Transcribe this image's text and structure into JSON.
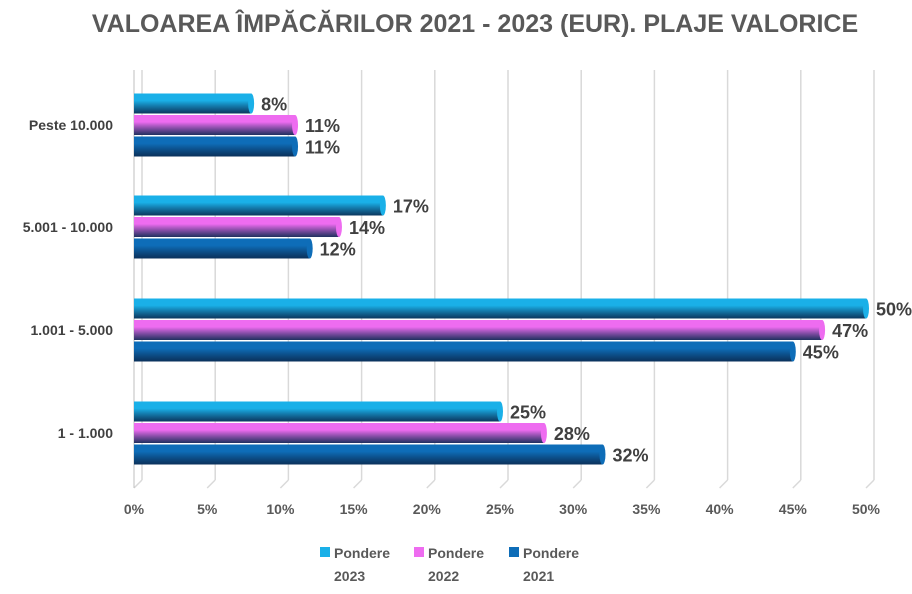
{
  "chart_data": {
    "type": "bar",
    "orientation": "horizontal",
    "title": "VALOAREA ÎMPĂCĂRILOR 2021 - 2023 (EUR). PLAJE VALORICE",
    "categories": [
      "Peste 10.000",
      "5.001 - 10.000",
      "1.001 - 5.000",
      "1 - 1.000"
    ],
    "series": [
      {
        "name": "Pondere 2023",
        "legend_lines": [
          "Pondere",
          "2023"
        ],
        "color": "#1ab0e8",
        "values": [
          8,
          17,
          50,
          25
        ],
        "labels": [
          "8%",
          "17%",
          "50%",
          "25%"
        ]
      },
      {
        "name": "Pondere 2022",
        "legend_lines": [
          "Pondere",
          "2022"
        ],
        "color": "#ee6cf0",
        "values": [
          11,
          14,
          47,
          28
        ],
        "labels": [
          "11%",
          "14%",
          "47%",
          "28%"
        ]
      },
      {
        "name": "Pondere 2021",
        "legend_lines": [
          "Pondere",
          "2021"
        ],
        "color": "#0e6db8",
        "values": [
          11,
          12,
          45,
          32
        ],
        "labels": [
          "11%",
          "12%",
          "45%",
          "32%"
        ]
      }
    ],
    "xlim": [
      0,
      50
    ],
    "xticks": [
      "0%",
      "5%",
      "10%",
      "15%",
      "20%",
      "25%",
      "30%",
      "35%",
      "40%",
      "45%",
      "50%"
    ],
    "grid": true,
    "legend_position": "bottom",
    "xlabel": "",
    "ylabel": ""
  }
}
